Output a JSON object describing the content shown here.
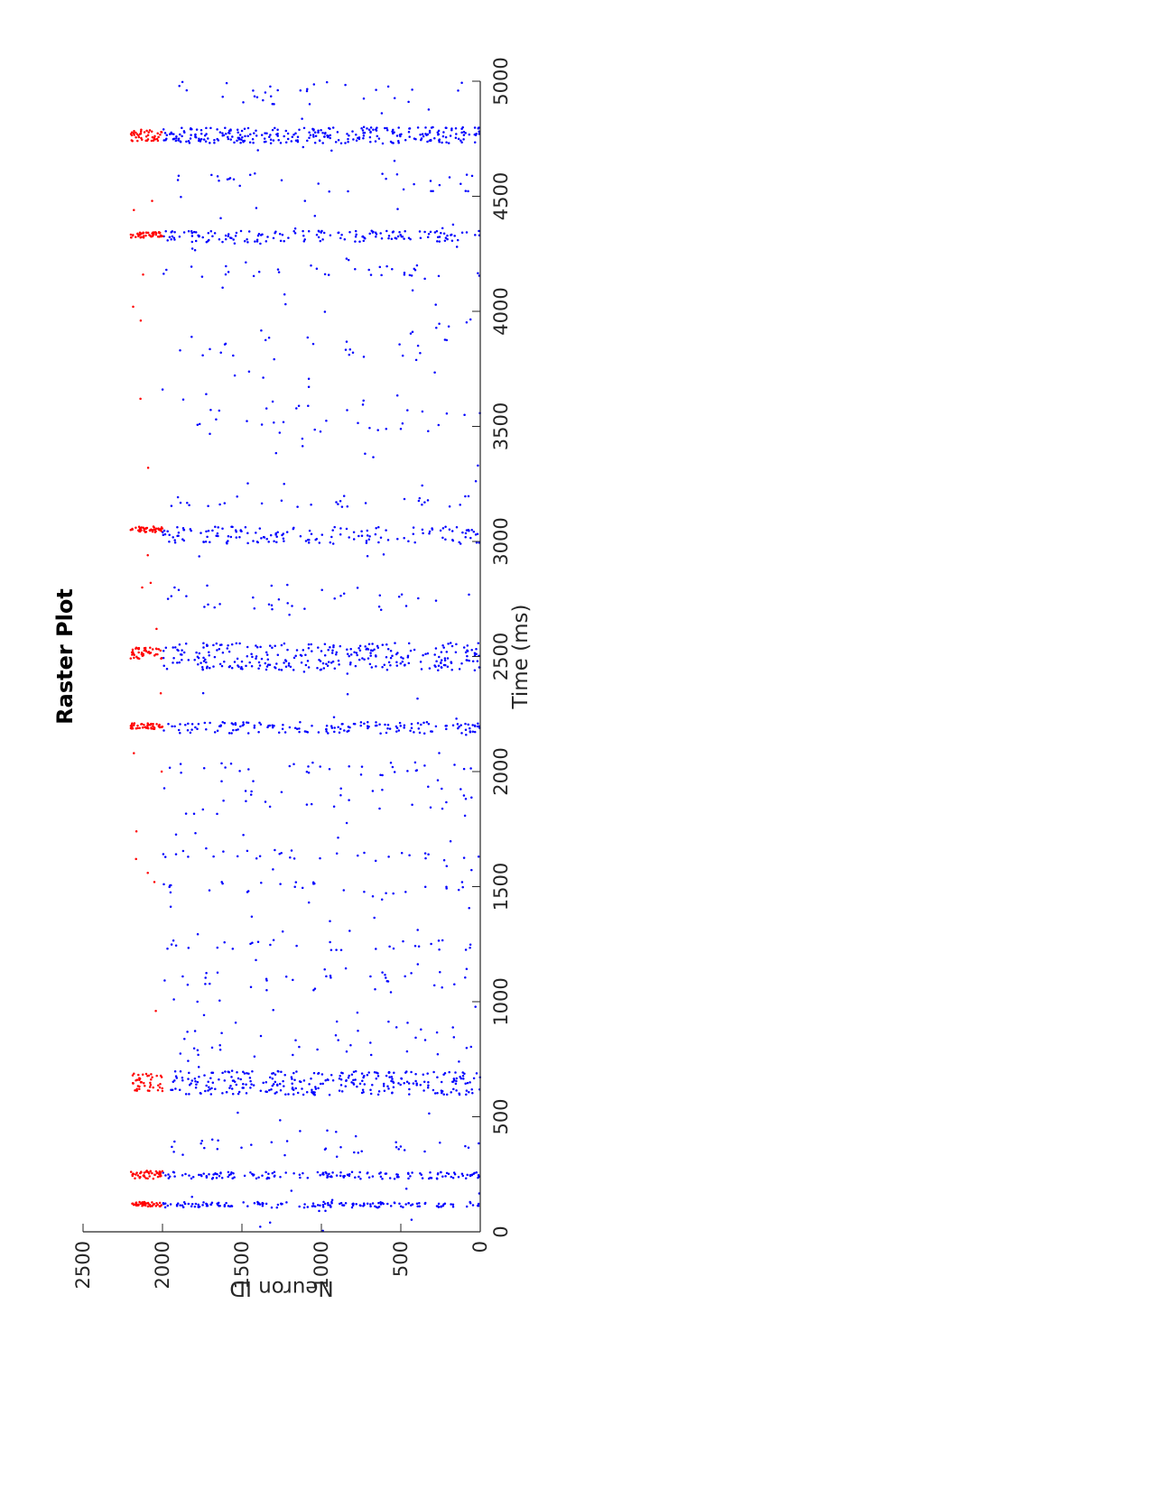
{
  "chart_data": {
    "type": "scatter",
    "title": "Raster Plot",
    "xlabel": "Time (ms)",
    "ylabel": "Neuron ID",
    "xlim": [
      0,
      5000
    ],
    "ylim": [
      0,
      2500
    ],
    "xticks": [
      "0",
      "500",
      "1000",
      "1500",
      "2000",
      "2500",
      "3000",
      "3500",
      "4000",
      "4500",
      "5000"
    ],
    "yticks": [
      "0",
      "500",
      "1000",
      "1500",
      "2000",
      "2500"
    ],
    "grid": false,
    "legend": "none",
    "orientation": "rotated 90° clockwise on page",
    "series": [
      {
        "color": "#0000ff",
        "neuron_range": [
          0,
          2000
        ],
        "bursts": [
          {
            "t_start": 105,
            "t_end": 130,
            "density": "high"
          },
          {
            "t_start": 230,
            "t_end": 260,
            "density": "high"
          },
          {
            "t_start": 595,
            "t_end": 700,
            "density": "very high"
          },
          {
            "t_start": 2165,
            "t_end": 2215,
            "density": "high"
          },
          {
            "t_start": 2440,
            "t_end": 2560,
            "density": "very high"
          },
          {
            "t_start": 2990,
            "t_end": 3065,
            "density": "high"
          },
          {
            "t_start": 4300,
            "t_end": 4350,
            "density": "high"
          },
          {
            "t_start": 4730,
            "t_end": 4800,
            "density": "very high"
          }
        ],
        "sparse_clusters": [
          {
            "t_start": 330,
            "t_end": 420
          },
          {
            "t_start": 760,
            "t_end": 880
          },
          {
            "t_start": 1050,
            "t_end": 1130
          },
          {
            "t_start": 1220,
            "t_end": 1270
          },
          {
            "t_start": 1470,
            "t_end": 1520
          },
          {
            "t_start": 1620,
            "t_end": 1660
          },
          {
            "t_start": 1800,
            "t_end": 1940
          },
          {
            "t_start": 1980,
            "t_end": 2040
          },
          {
            "t_start": 2700,
            "t_end": 2820
          },
          {
            "t_start": 3150,
            "t_end": 3200
          },
          {
            "t_start": 3460,
            "t_end": 3620
          },
          {
            "t_start": 3800,
            "t_end": 3950
          },
          {
            "t_start": 4150,
            "t_end": 4200
          },
          {
            "t_start": 4520,
            "t_end": 4600
          },
          {
            "t_start": 4900,
            "t_end": 5000
          }
        ]
      },
      {
        "color": "#ff0000",
        "neuron_range": [
          2000,
          2200
        ],
        "bursts": [
          {
            "t_start": 110,
            "t_end": 130
          },
          {
            "t_start": 230,
            "t_end": 265
          },
          {
            "t_start": 610,
            "t_end": 690
          },
          {
            "t_start": 2185,
            "t_end": 2210
          },
          {
            "t_start": 2490,
            "t_end": 2540
          },
          {
            "t_start": 3040,
            "t_end": 3065
          },
          {
            "t_start": 4320,
            "t_end": 4345
          },
          {
            "t_start": 4740,
            "t_end": 4790
          }
        ],
        "isolated_times": [
          960,
          1520,
          1560,
          1620,
          1740,
          2000,
          2080,
          2340,
          2620,
          2800,
          2820,
          2940,
          3320,
          3620,
          3960,
          4020,
          4160,
          4440,
          4480
        ]
      }
    ]
  }
}
